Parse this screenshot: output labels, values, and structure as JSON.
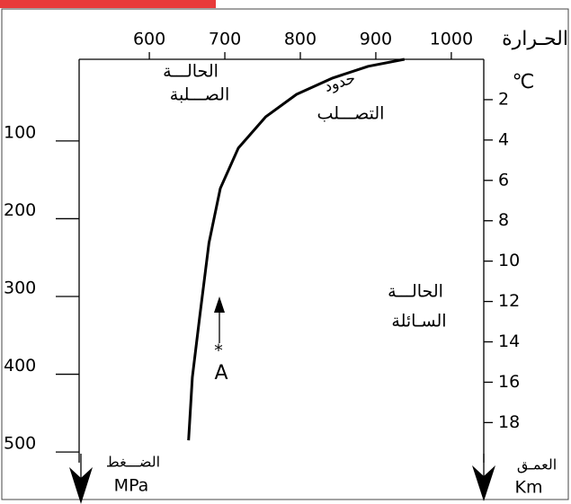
{
  "chart_data": {
    "type": "line",
    "x_title": "الحـرارة",
    "x_unit": "℃",
    "y_title": "الضـــغط",
    "y_unit": "MPa",
    "y2_title": "العمـق",
    "y2_unit": "Km",
    "x": [
      652,
      657,
      667,
      679,
      694,
      718,
      754,
      795,
      843,
      890,
      938
    ],
    "values": [
      485,
      404,
      324,
      231,
      161,
      109,
      69,
      40,
      19,
      4,
      -5
    ],
    "color": "#000000",
    "xlim": [
      507,
      1043
    ],
    "xticks": [
      600,
      700,
      800,
      900,
      1000
    ],
    "ylim": [
      -5,
      553
    ],
    "yticks": [
      100,
      200,
      300,
      400,
      500
    ],
    "y_reversed": true,
    "y2lim": [
      0,
      21.5
    ],
    "y2ticks": [
      2,
      4,
      6,
      8,
      10,
      12,
      14,
      16,
      18
    ],
    "annotations": [
      "الحالـــة",
      "الصـــلبة",
      "حدود",
      "التصـــلب",
      "الحالـــة",
      "السـائلة",
      "*",
      "A"
    ]
  }
}
